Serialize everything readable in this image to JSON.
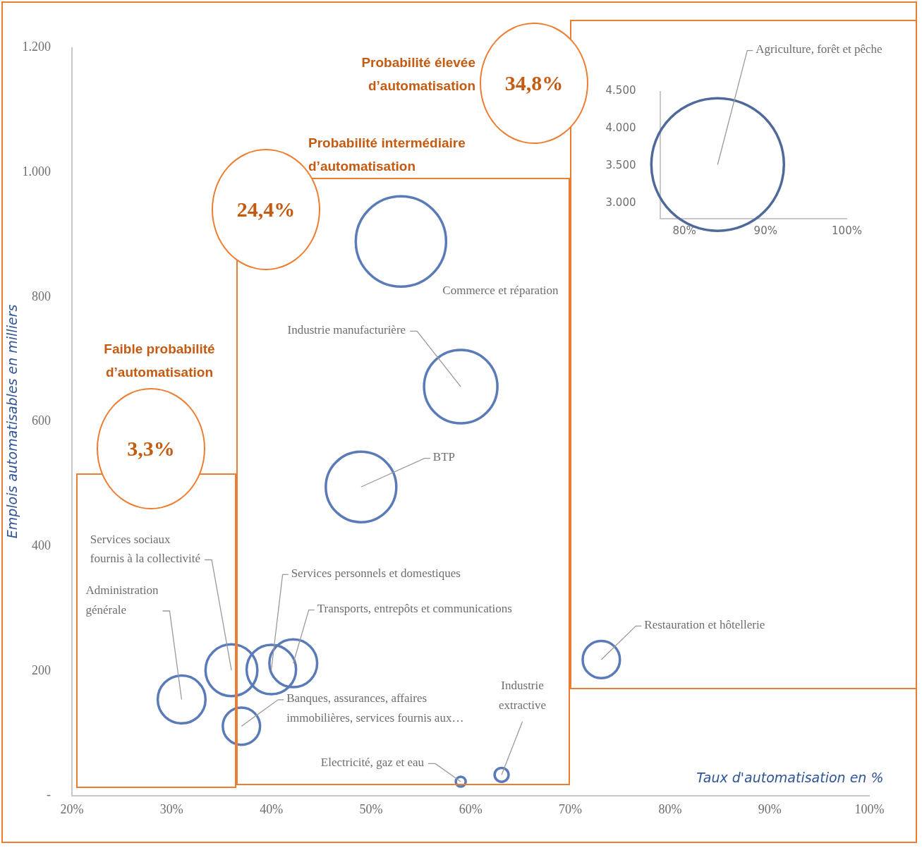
{
  "chart_data": [
    {
      "type": "bubble",
      "xlabel": "Taux d'automatisation en %",
      "ylabel": "Emplois automatisables en milliers",
      "xlim": [
        20,
        100
      ],
      "xticks": [
        {
          "value": 20,
          "label": "20%"
        },
        {
          "value": 30,
          "label": "30%"
        },
        {
          "value": 40,
          "label": "40%"
        },
        {
          "value": 50,
          "label": "50%"
        },
        {
          "value": 60,
          "label": "60%"
        },
        {
          "value": 70,
          "label": "70%"
        },
        {
          "value": 80,
          "label": "80%"
        },
        {
          "value": 90,
          "label": "90%"
        },
        {
          "value": 100,
          "label": "100%"
        }
      ],
      "ylim": [
        0,
        1200
      ],
      "yticks": [
        {
          "value": 0,
          "label": "-"
        },
        200,
        400,
        600,
        800,
        {
          "value": 1000,
          "label": "1.000"
        },
        {
          "value": 1200,
          "label": "1.200"
        }
      ],
      "grid": false,
      "legend": false,
      "annotations": [
        "Faible probabilité d’automatisation",
        "3,3%",
        "Probabilité intermédiaire d’automatisation",
        "24,4%",
        "Probabilité élevée d’automatisation",
        "34,8%"
      ],
      "series": [
        {
          "name": "Administration générale",
          "color": "#5b7bb8",
          "x": [
            31
          ],
          "values": [
            154
          ],
          "sizes": [
            0.28
          ]
        },
        {
          "name": "Services sociaux fournis à la collectivité",
          "color": "#5b7bb8",
          "x": [
            36
          ],
          "values": [
            201
          ],
          "sizes": [
            0.33
          ]
        },
        {
          "name": "Services personnels et domestiques",
          "color": "#5b7bb8",
          "x": [
            40
          ],
          "values": [
            202
          ],
          "sizes": [
            0.3
          ]
        },
        {
          "name": "Transports, entrepôts et communications",
          "color": "#5b7bb8",
          "x": [
            42.2
          ],
          "values": [
            212
          ],
          "sizes": [
            0.28
          ]
        },
        {
          "name": "Banques, assurances, affaires immobilières, services fournis aux…",
          "color": "#5b7bb8",
          "x": [
            37
          ],
          "values": [
            111
          ],
          "sizes": [
            0.17
          ]
        },
        {
          "name": "Electricité, gaz et eau",
          "color": "#5b7bb8",
          "x": [
            59
          ],
          "values": [
            22
          ],
          "sizes": [
            0.012
          ]
        },
        {
          "name": "Industrie extractive",
          "color": "#5b7bb8",
          "x": [
            63.1
          ],
          "values": [
            33
          ],
          "sizes": [
            0.024
          ]
        },
        {
          "name": "BTP",
          "color": "#5b7bb8",
          "x": [
            49
          ],
          "values": [
            495
          ],
          "sizes": [
            0.61
          ]
        },
        {
          "name": "Industrie manufacturière",
          "color": "#5b7bb8",
          "x": [
            59
          ],
          "values": [
            656
          ],
          "sizes": [
            0.66
          ]
        },
        {
          "name": "Commerce et réparation",
          "color": "#5b7bb8",
          "x": [
            53
          ],
          "values": [
            889
          ],
          "sizes": [
            1
          ]
        },
        {
          "name": "Restauration et hôtellerie",
          "color": "#5b7bb8",
          "x": [
            73.1
          ],
          "values": [
            218
          ],
          "sizes": [
            0.17
          ]
        }
      ]
    },
    {
      "type": "bubble",
      "xlim": [
        77,
        100
      ],
      "xticks": [
        {
          "value": 80,
          "label": "80%"
        },
        {
          "value": 90,
          "label": "90%"
        },
        {
          "value": 100,
          "label": "100%"
        }
      ],
      "ylim": [
        2800,
        4500
      ],
      "yticks": [
        {
          "value": 3000,
          "label": "3.000"
        },
        {
          "value": 3500,
          "label": "3.500"
        },
        {
          "value": 4000,
          "label": "4.000"
        },
        {
          "value": 4500,
          "label": "4.500"
        }
      ],
      "grid": false,
      "legend": false,
      "series": [
        {
          "name": "Agriculture, forêt et pêche",
          "color": "#4f6a9a",
          "x": [
            84.1
          ],
          "values": [
            3520
          ],
          "sizes": [
            1
          ]
        }
      ]
    }
  ]
}
